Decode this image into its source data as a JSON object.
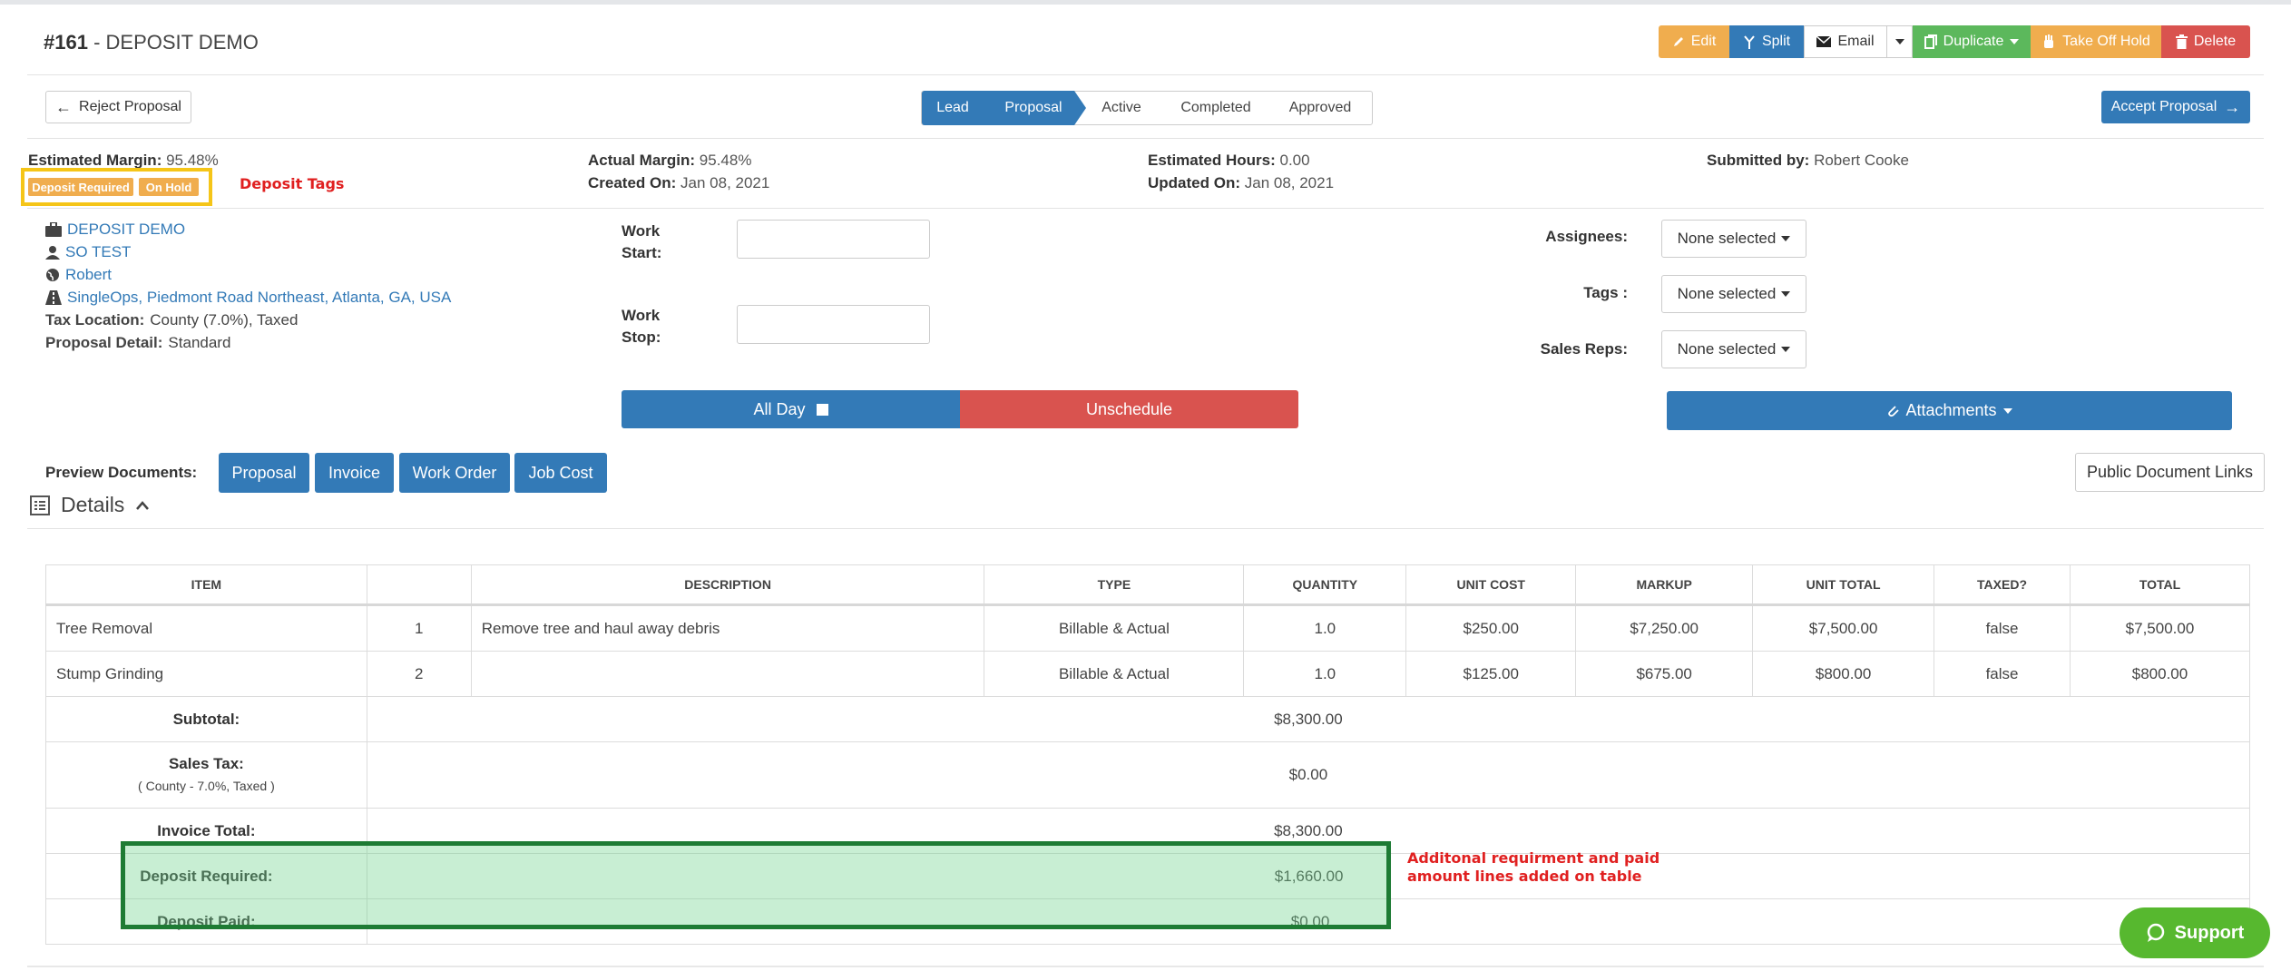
{
  "header": {
    "number": "#161",
    "separator": " - ",
    "name": "DEPOSIT DEMO"
  },
  "toolbar": {
    "edit": "Edit",
    "split": "Split",
    "email": "Email",
    "duplicate": "Duplicate",
    "take_off_hold": "Take Off Hold",
    "delete": "Delete"
  },
  "actions": {
    "reject": "Reject Proposal",
    "accept": "Accept Proposal"
  },
  "stages": {
    "lead": "Lead",
    "proposal": "Proposal",
    "active": "Active",
    "completed": "Completed",
    "approved": "Approved"
  },
  "meta": {
    "estimated_margin_label": "Estimated Margin:",
    "estimated_margin": "95.48%",
    "actual_margin_label": "Actual Margin:",
    "actual_margin": "95.48%",
    "created_label": "Created On:",
    "created": "Jan 08, 2021",
    "estimated_hours_label": "Estimated Hours:",
    "estimated_hours": "0.00",
    "updated_label": "Updated On:",
    "updated": "Jan 08, 2021",
    "submitted_label": "Submitted by:",
    "submitted": "Robert Cooke"
  },
  "tags": [
    "Deposit Required",
    "On Hold"
  ],
  "annotations": {
    "deposit_tags": "Deposit Tags",
    "table_note_1": "Additonal requirment and paid",
    "table_note_2": "amount lines added on table"
  },
  "info": {
    "job": "DEPOSIT DEMO",
    "customer": "SO TEST",
    "contact": "Robert",
    "address": "SingleOps, Piedmont Road Northeast, Atlanta, GA, USA",
    "tax_location_label": "Tax Location:",
    "tax_location": "County (7.0%), Taxed",
    "proposal_detail_label": "Proposal Detail:",
    "proposal_detail": "Standard"
  },
  "schedule": {
    "work_start_1": "Work",
    "work_start_2": "Start:",
    "work_stop_1": "Work",
    "work_stop_2": "Stop:",
    "all_day": "All Day",
    "unschedule": "Unschedule"
  },
  "assign": {
    "assignees_label": "Assignees:",
    "tags_label": "Tags :",
    "sales_reps_label": "Sales Reps:",
    "none_selected": "None selected",
    "attachments": "Attachments"
  },
  "preview": {
    "label": "Preview Documents:",
    "proposal": "Proposal",
    "invoice": "Invoice",
    "work_order": "Work Order",
    "job_cost": "Job Cost",
    "public_links": "Public Document Links"
  },
  "details": {
    "title": "Details"
  },
  "table": {
    "headers": [
      "ITEM",
      "",
      "DESCRIPTION",
      "TYPE",
      "QUANTITY",
      "UNIT COST",
      "MARKUP",
      "UNIT TOTAL",
      "TAXED?",
      "TOTAL"
    ],
    "rows": [
      [
        "Tree Removal",
        "1",
        "Remove tree and haul away debris",
        "Billable & Actual",
        "1.0",
        "$250.00",
        "$7,250.00",
        "$7,500.00",
        "false",
        "$7,500.00"
      ],
      [
        "Stump Grinding",
        "2",
        "",
        "Billable & Actual",
        "1.0",
        "$125.00",
        "$675.00",
        "$800.00",
        "false",
        "$800.00"
      ]
    ],
    "subtotal_label": "Subtotal:",
    "subtotal": "$8,300.00",
    "sales_tax_label": "Sales Tax:",
    "sales_tax_note": "( County - 7.0%, Taxed )",
    "sales_tax": "$0.00",
    "invoice_total_label": "Invoice Total:",
    "invoice_total": "$8,300.00",
    "deposit_required_label": "Deposit Required:",
    "deposit_required": "$1,660.00",
    "deposit_paid_label": "Deposit Paid:",
    "deposit_paid": "$0.00"
  },
  "support": {
    "label": "Support"
  },
  "colors": {
    "primary": "#337ab7",
    "warning": "#f0ad4e",
    "success": "#5cb85c",
    "danger": "#d9534f",
    "highlight_border": "#1e7b34",
    "annotation_red": "#e02020",
    "support_green": "#57b82f"
  },
  "icons": [
    "pencil-icon",
    "split-icon",
    "envelope-icon",
    "copy-icon",
    "hand-icon",
    "trash-icon",
    "arrow-left-icon",
    "arrow-right-icon",
    "briefcase-icon",
    "user-icon",
    "globe-icon",
    "road-icon",
    "paperclip-icon",
    "list-icon",
    "chevron-up-icon",
    "chat-icon"
  ]
}
